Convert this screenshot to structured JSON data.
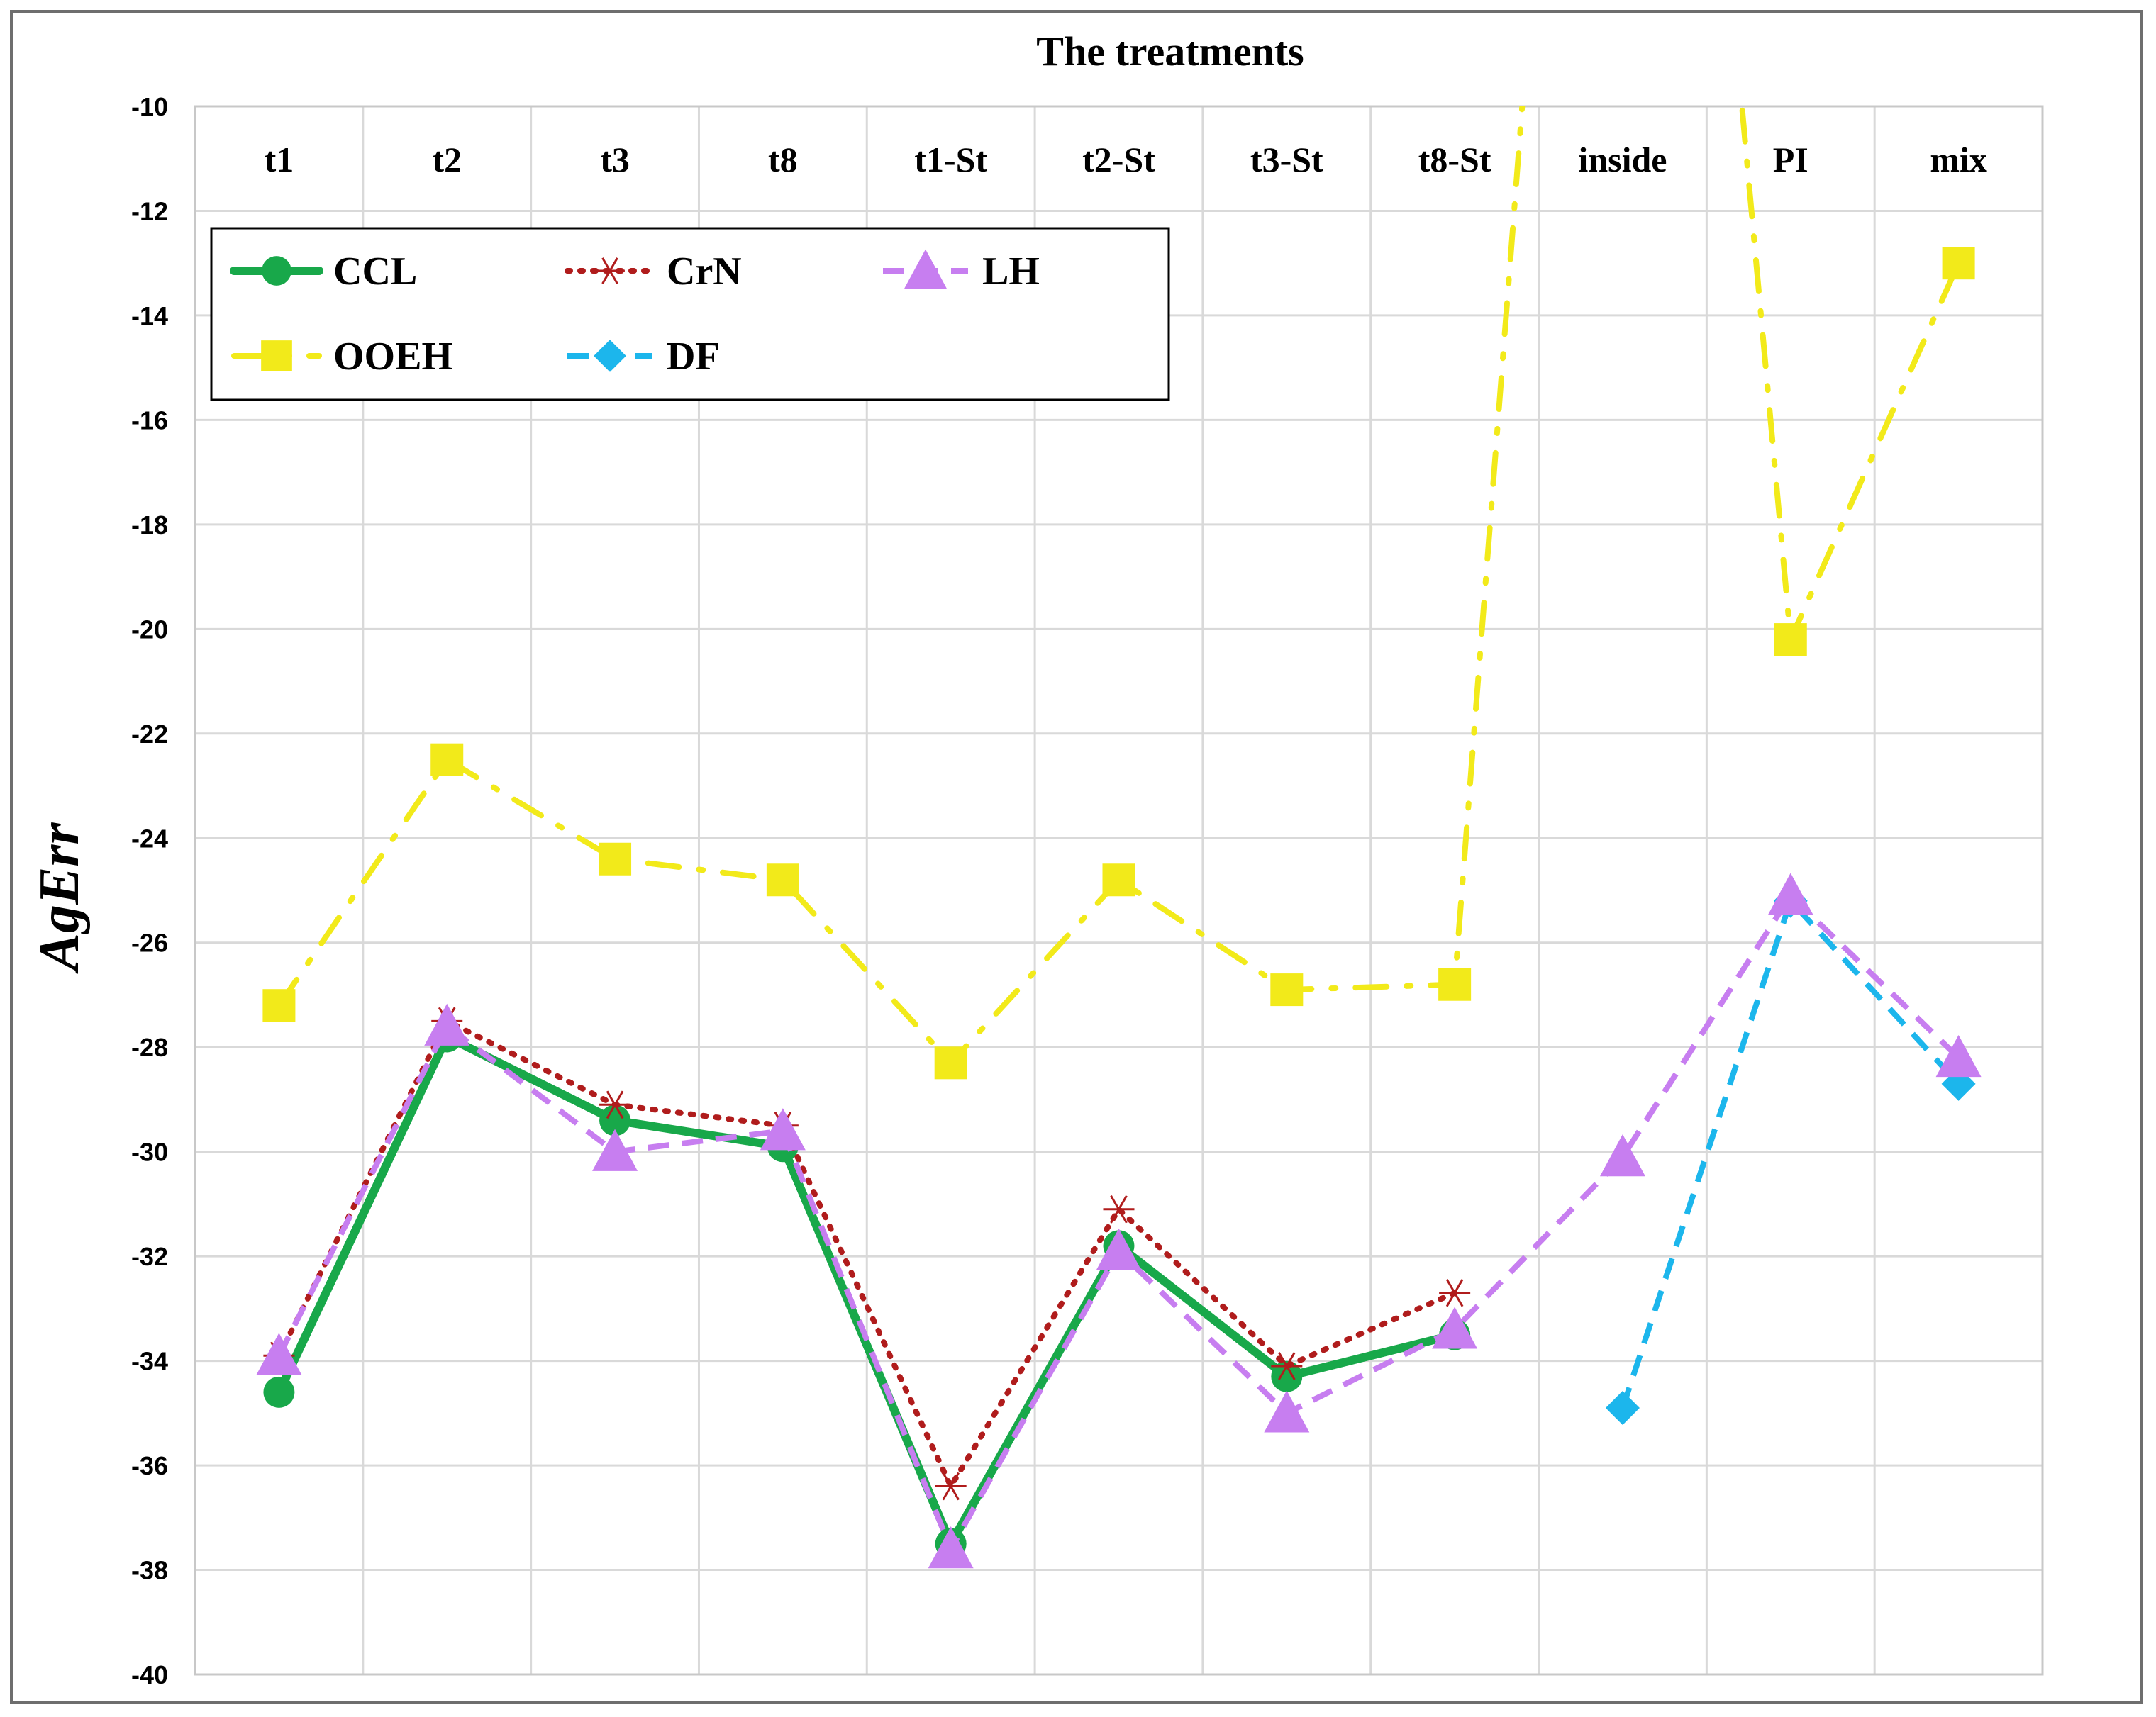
{
  "chart_data": {
    "type": "line",
    "title": "The treatments",
    "xlabel": "",
    "ylabel": "AgErr",
    "ylim": [
      -40,
      -10
    ],
    "y_ticks": [
      -10,
      -12,
      -14,
      -16,
      -18,
      -20,
      -22,
      -24,
      -26,
      -28,
      -30,
      -32,
      -34,
      -36,
      -38,
      -40
    ],
    "x_axis_position": "top",
    "grid": true,
    "legend_position": "top-left",
    "categories": [
      "t1",
      "t2",
      "t3",
      "t8",
      "t1-St",
      "t2-St",
      "t3-St",
      "t8-St",
      "inside",
      "PI",
      "mix"
    ],
    "series": [
      {
        "name": "CCL",
        "color": "#18a84a",
        "marker": "circle",
        "line_style": "solid",
        "values": [
          -34.6,
          -27.8,
          -29.4,
          -29.9,
          -37.5,
          -31.8,
          -34.3,
          -33.5,
          null,
          null,
          null
        ]
      },
      {
        "name": "CrN",
        "color": "#b01c1c",
        "marker": "asterisk",
        "line_style": "dotted",
        "values": [
          -33.9,
          -27.5,
          -29.1,
          -29.5,
          -36.4,
          -31.1,
          -34.1,
          -32.7,
          null,
          null,
          null
        ]
      },
      {
        "name": "LH",
        "color": "#c77ef0",
        "marker": "triangle",
        "line_style": "dashed",
        "values": [
          -33.9,
          -27.6,
          -30.0,
          -29.6,
          -37.6,
          -31.9,
          -35.0,
          -33.4,
          -30.1,
          -25.1,
          -28.2
        ]
      },
      {
        "name": "OOEH",
        "color": "#f2ea1a",
        "marker": "square",
        "line_style": "dash-dot",
        "values": [
          -27.2,
          -22.5,
          -24.4,
          -24.8,
          -28.3,
          -24.8,
          -26.9,
          -26.8,
          15.0,
          -20.2,
          -13.0
        ]
      },
      {
        "name": "DF",
        "color": "#1cb6ec",
        "marker": "diamond",
        "line_style": "dashed",
        "values": [
          null,
          null,
          null,
          null,
          null,
          null,
          null,
          null,
          -34.9,
          -25.2,
          -28.7
        ]
      }
    ]
  }
}
